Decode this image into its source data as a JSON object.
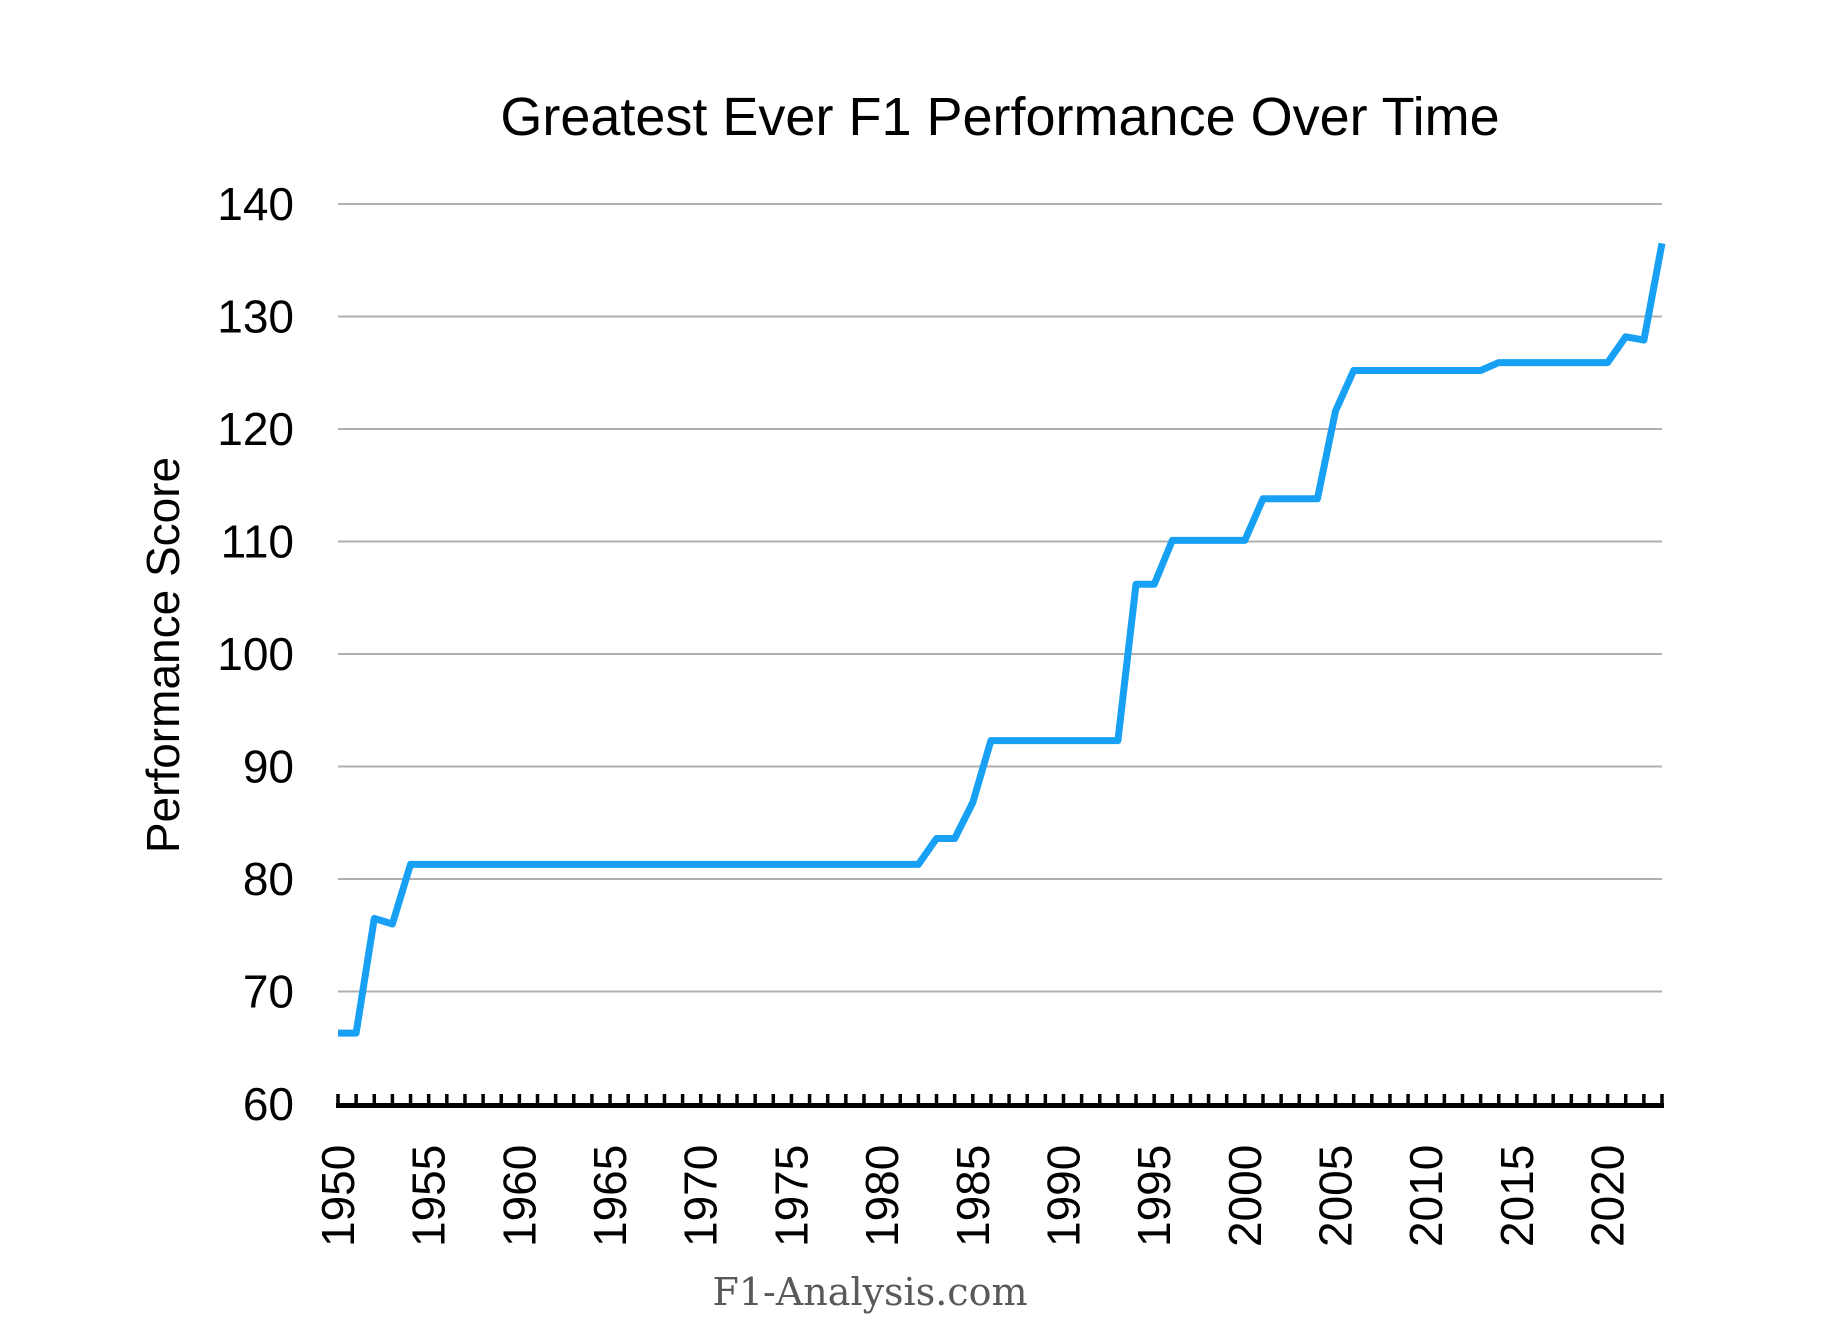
{
  "chart_data": {
    "type": "line",
    "title": "Greatest Ever F1 Performance Over Time",
    "ylabel": "Performance Score",
    "xlabel": "",
    "footer": "F1-Analysis.com",
    "legend": "none",
    "grid": "horizontal-only",
    "ylim": [
      60,
      140
    ],
    "y_ticks": [
      60,
      70,
      80,
      90,
      100,
      110,
      120,
      130,
      140
    ],
    "x_tick_years_labeled": [
      1950,
      1955,
      1960,
      1965,
      1970,
      1975,
      1980,
      1985,
      1990,
      1995,
      2000,
      2005,
      2010,
      2015,
      2020
    ],
    "x": [
      1950,
      1951,
      1952,
      1953,
      1954,
      1955,
      1956,
      1957,
      1958,
      1959,
      1960,
      1961,
      1962,
      1963,
      1964,
      1965,
      1966,
      1967,
      1968,
      1969,
      1970,
      1971,
      1972,
      1973,
      1974,
      1975,
      1976,
      1977,
      1978,
      1979,
      1980,
      1981,
      1982,
      1983,
      1984,
      1985,
      1986,
      1987,
      1988,
      1989,
      1990,
      1991,
      1992,
      1993,
      1994,
      1995,
      1996,
      1997,
      1998,
      1999,
      2000,
      2001,
      2002,
      2003,
      2004,
      2005,
      2006,
      2007,
      2008,
      2009,
      2010,
      2011,
      2012,
      2013,
      2014,
      2015,
      2016,
      2017,
      2018,
      2019,
      2020,
      2021,
      2022,
      2023
    ],
    "series": [
      {
        "name": "Performance Score",
        "values": [
          66.3,
          66.3,
          76.5,
          76.0,
          81.3,
          81.3,
          81.3,
          81.3,
          81.3,
          81.3,
          81.3,
          81.3,
          81.3,
          81.3,
          81.3,
          81.3,
          81.3,
          81.3,
          81.3,
          81.3,
          81.3,
          81.3,
          81.3,
          81.3,
          81.3,
          81.3,
          81.3,
          81.3,
          81.3,
          81.3,
          81.3,
          81.3,
          81.3,
          83.6,
          83.6,
          86.8,
          92.3,
          92.3,
          92.3,
          92.3,
          92.3,
          92.3,
          92.3,
          92.3,
          106.2,
          106.2,
          110.1,
          110.1,
          110.1,
          110.1,
          110.1,
          113.8,
          113.8,
          113.8,
          113.8,
          121.6,
          125.2,
          125.2,
          125.2,
          125.2,
          125.2,
          125.2,
          125.2,
          125.2,
          125.9,
          125.9,
          125.9,
          125.9,
          125.9,
          125.9,
          125.9,
          128.2,
          127.9,
          136.5
        ]
      }
    ],
    "colors": {
      "line": "#18A0F4",
      "grid": "#AFAFAF",
      "axis": "#000000",
      "title_text": "#000000",
      "tick_text": "#000000",
      "footer_text": "#595959",
      "background": "#FFFFFF"
    }
  }
}
